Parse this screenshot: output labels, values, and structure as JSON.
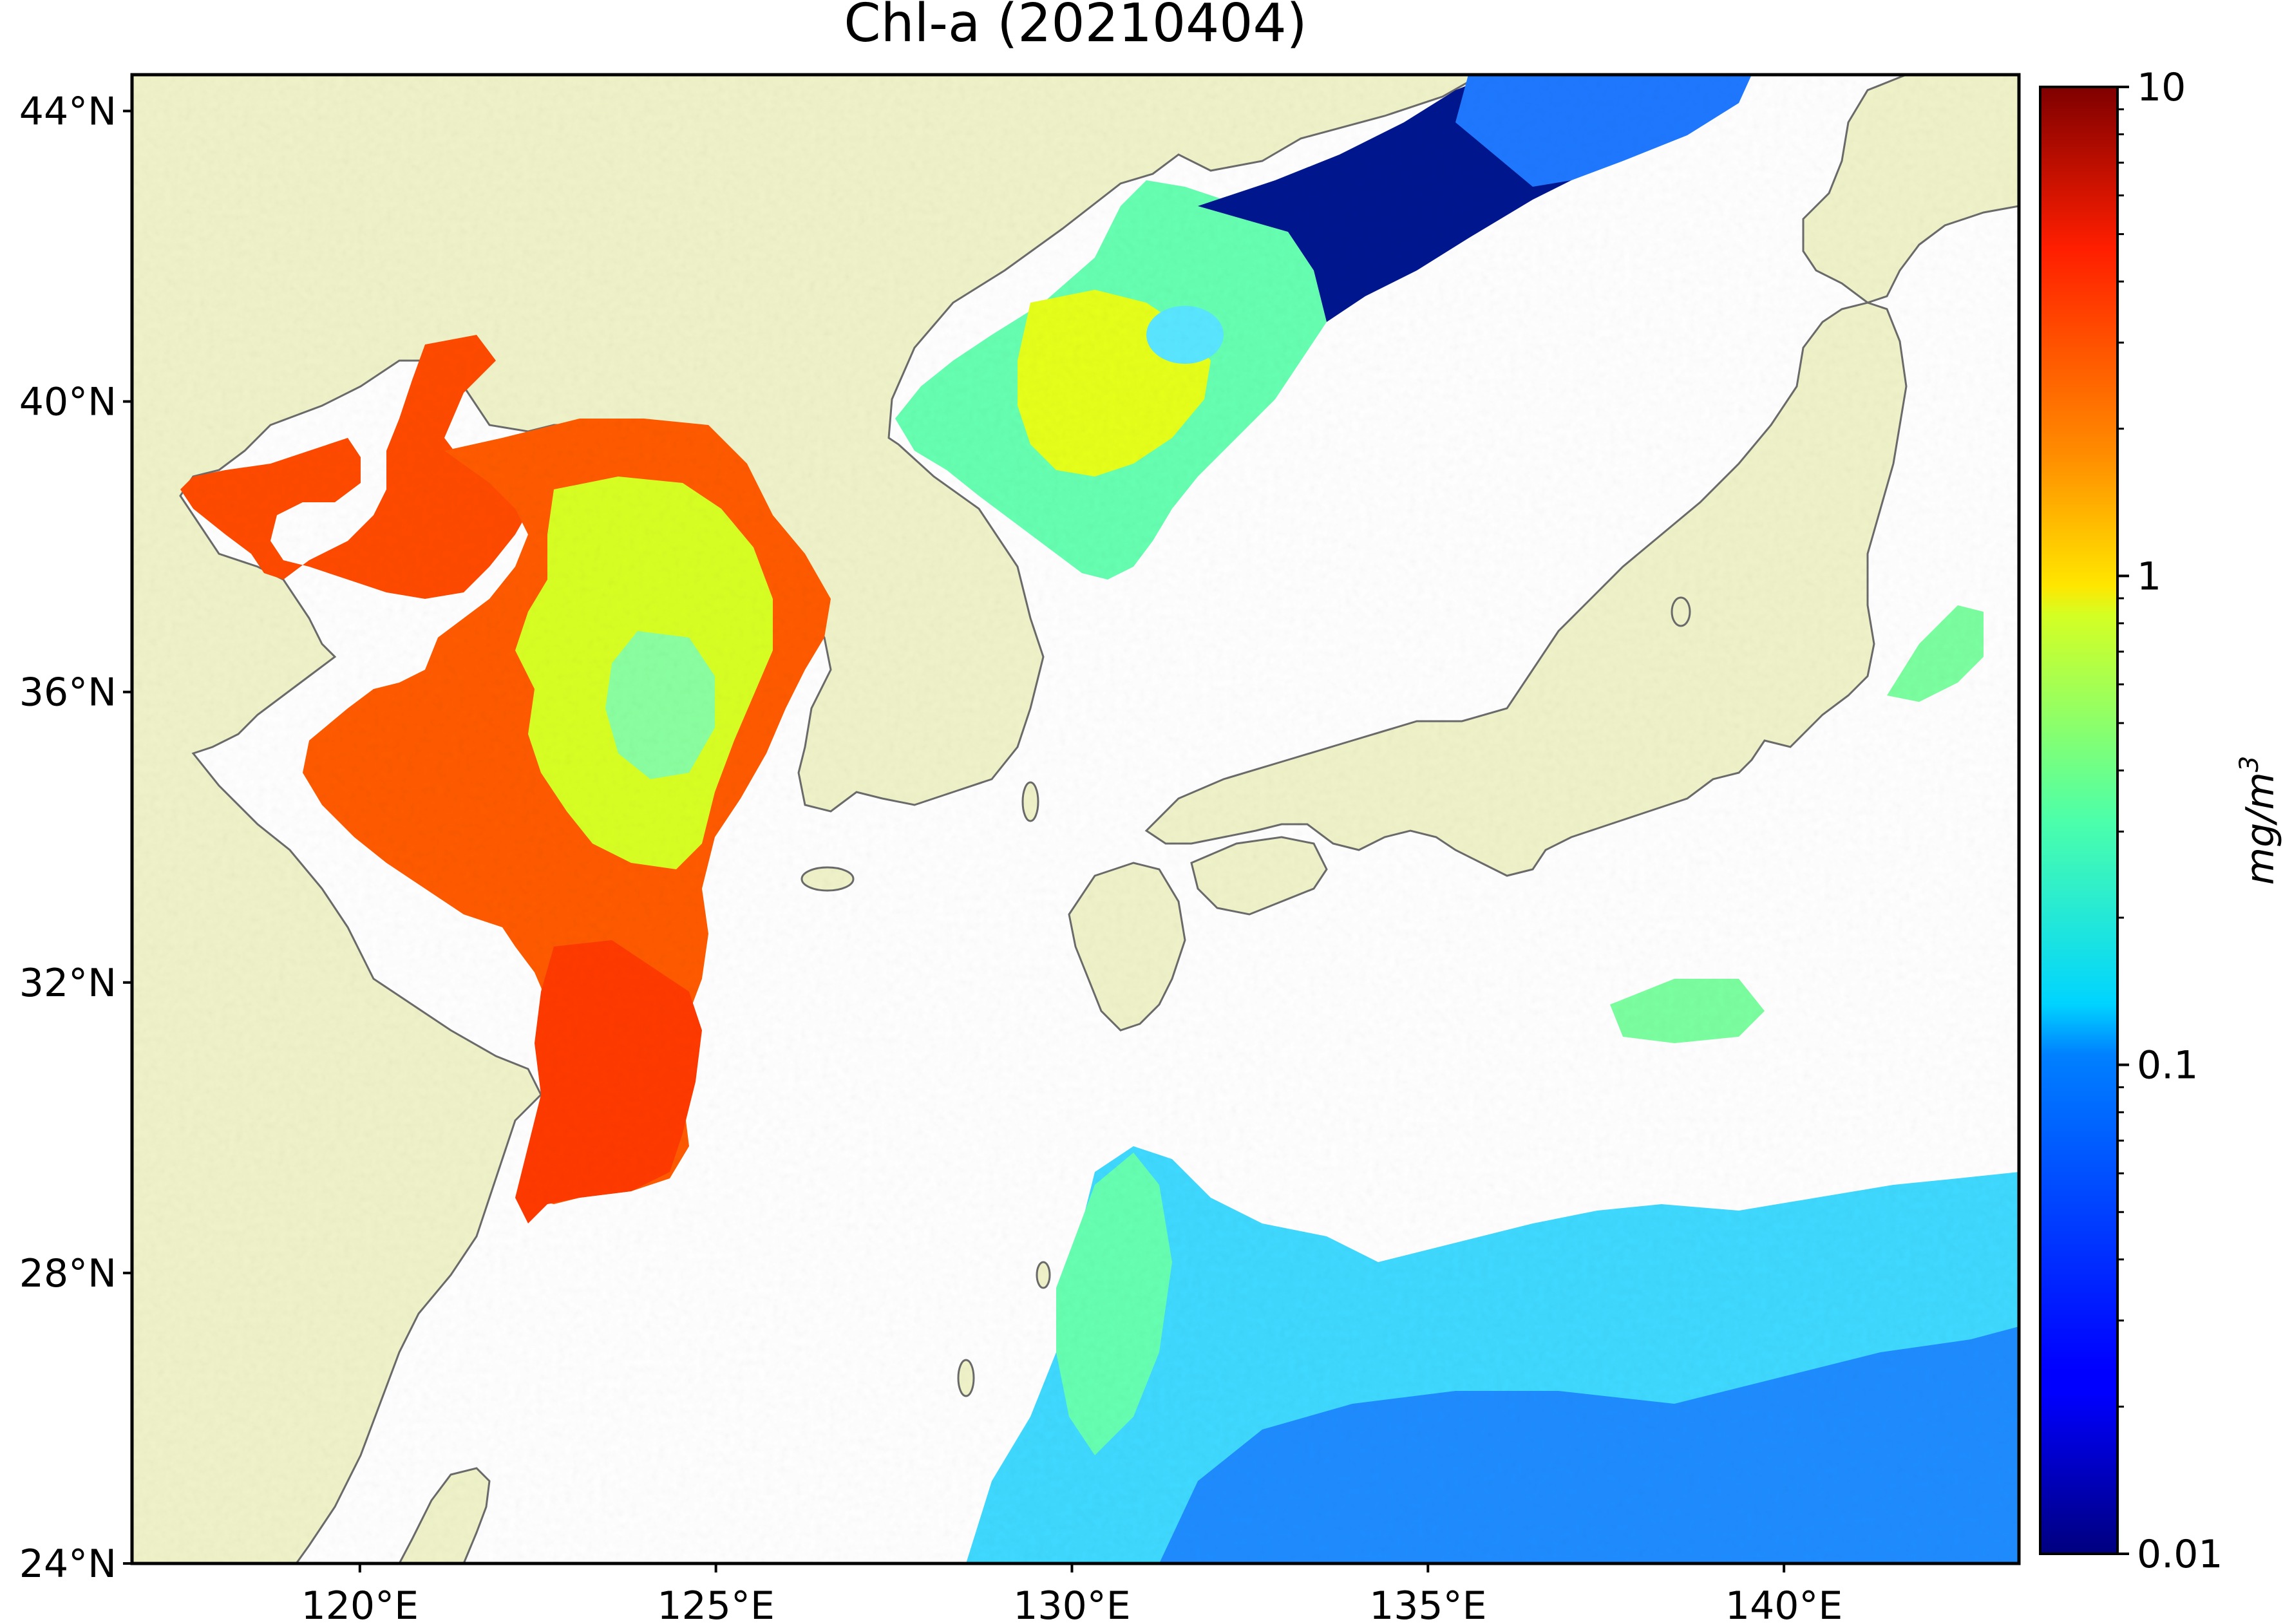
{
  "title": "Chl-a (20210404)",
  "map": {
    "lat_range": [
      24,
      44.5
    ],
    "lon_range": [
      116.8,
      143.3
    ],
    "lat_ticks": [
      {
        "value": 44,
        "label": "44°N"
      },
      {
        "value": 40,
        "label": "40°N"
      },
      {
        "value": 36,
        "label": "36°N"
      },
      {
        "value": 32,
        "label": "32°N"
      },
      {
        "value": 28,
        "label": "28°N"
      },
      {
        "value": 24,
        "label": "24°N"
      }
    ],
    "lon_ticks": [
      {
        "value": 120,
        "label": "120°E"
      },
      {
        "value": 125,
        "label": "125°E"
      },
      {
        "value": 130,
        "label": "130°E"
      },
      {
        "value": 135,
        "label": "135°E"
      },
      {
        "value": 140,
        "label": "140°E"
      }
    ],
    "colors": {
      "land": "#f0f3c9",
      "coastline": "#6b6b6b",
      "no_data": "#ffffff",
      "frame": "#000000"
    }
  },
  "colorbar": {
    "label": "mg/m³",
    "label_base": "mg/m",
    "label_sup": "3",
    "scale": "log",
    "range": [
      0.01,
      10
    ],
    "colormap": "jet",
    "ticks": [
      {
        "value": 10,
        "label": "10"
      },
      {
        "value": 1,
        "label": "1"
      },
      {
        "value": 0.1,
        "label": "0.1"
      },
      {
        "value": 0.01,
        "label": "0.01"
      }
    ]
  }
}
